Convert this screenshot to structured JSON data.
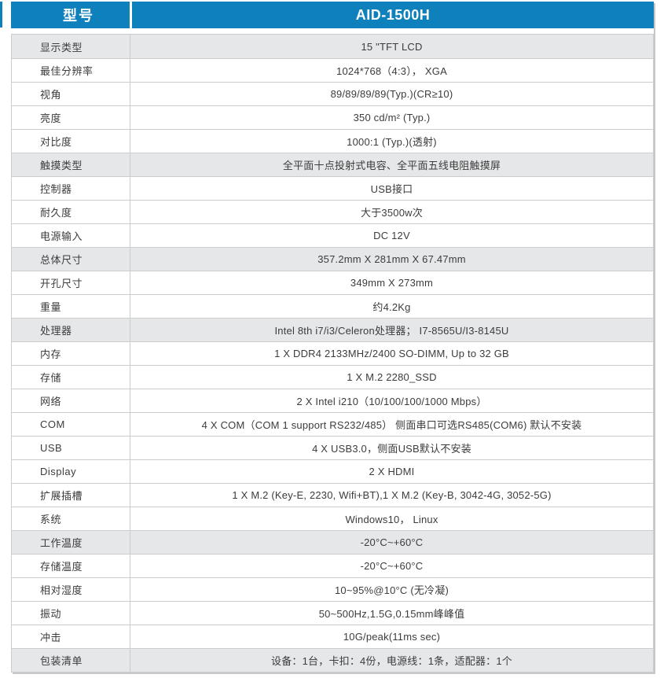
{
  "colors": {
    "header_bg": "#0E81BD",
    "section_row_bg": "#E6E7E9",
    "border": "#CBCCCE",
    "text": "#3C3C3C",
    "header_text": "#FFFFFF"
  },
  "table": {
    "header": {
      "label": "型号",
      "value": "AID-1500H"
    },
    "rows": [
      {
        "label": "显示类型",
        "value": "15 \"TFT LCD",
        "section": true
      },
      {
        "label": "最佳分辨率",
        "value": "1024*768（4:3）， XGA",
        "section": false
      },
      {
        "label": "视角",
        "value": "89/89/89/89(Typ.)(CR≥10)",
        "section": false
      },
      {
        "label": "亮度",
        "value": "350 cd/m² (Typ.)",
        "section": false
      },
      {
        "label": "对比度",
        "value": "1000:1 (Typ.)(透射)",
        "section": false
      },
      {
        "label": "触摸类型",
        "value": "全平面十点投射式电容、全平面五线电阻触摸屏",
        "section": true
      },
      {
        "label": "控制器",
        "value": "USB接口",
        "section": false
      },
      {
        "label": "耐久度",
        "value": "大于3500w次",
        "section": false
      },
      {
        "label": "电源输入",
        "value": "DC 12V",
        "section": false
      },
      {
        "label": "总体尺寸",
        "value": "357.2mm X 281mm X 67.47mm",
        "section": true
      },
      {
        "label": "开孔尺寸",
        "value": "349mm X 273mm",
        "section": false
      },
      {
        "label": "重量",
        "value": "约4.2Kg",
        "section": false
      },
      {
        "label": "处理器",
        "value": "Intel 8th i7/i3/Celeron处理器； I7-8565U/I3-8145U",
        "section": true
      },
      {
        "label": "内存",
        "value": "1 X DDR4 2133MHz/2400 SO-DIMM, Up to 32 GB",
        "section": false
      },
      {
        "label": "存储",
        "value": "1 X M.2 2280_SSD",
        "section": false
      },
      {
        "label": "网络",
        "value": "2 X Intel i210（10/100/100/1000 Mbps）",
        "section": false
      },
      {
        "label": "COM",
        "value": "4 X COM（COM 1 support RS232/485） 侧面串口可选RS485(COM6) 默认不安装",
        "section": false
      },
      {
        "label": "USB",
        "value": "4 X USB3.0，侧面USB默认不安装",
        "section": false
      },
      {
        "label": "Display",
        "value": "2 X HDMI",
        "section": false
      },
      {
        "label": "扩展插槽",
        "value": "1 X M.2 (Key-E, 2230, Wifi+BT),1 X M.2 (Key-B, 3042-4G, 3052-5G)",
        "section": false
      },
      {
        "label": "系统",
        "value": "Windows10， Linux",
        "section": false
      },
      {
        "label": "工作温度",
        "value": "-20°C~+60°C",
        "section": true
      },
      {
        "label": "存储温度",
        "value": "-20°C~+60°C",
        "section": false
      },
      {
        "label": "相对湿度",
        "value": "10~95%@10°C (无冷凝)",
        "section": false
      },
      {
        "label": "振动",
        "value": "50~500Hz,1.5G,0.15mm峰峰值",
        "section": false
      },
      {
        "label": "冲击",
        "value": "10G/peak(11ms sec)",
        "section": false
      },
      {
        "label": "包装清单",
        "value": "设备：1台，卡扣：4份，电源线：1条，适配器：1个",
        "section": true
      }
    ]
  }
}
